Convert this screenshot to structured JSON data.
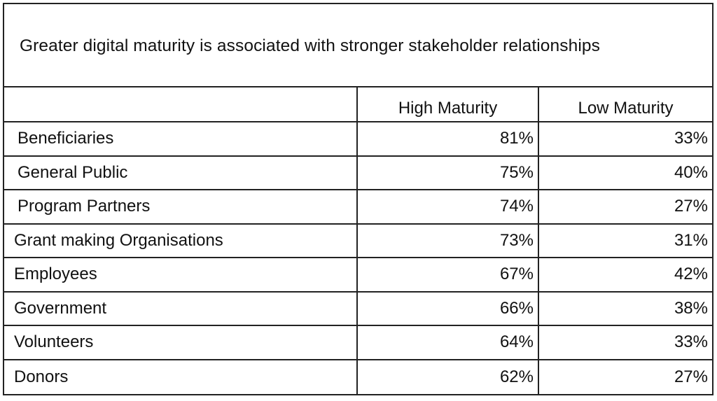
{
  "chart_data": {
    "type": "table",
    "title": "Greater digital maturity is associated with stronger stakeholder relationships",
    "columns": [
      "",
      "High Maturity",
      "Low Maturity"
    ],
    "rows": [
      {
        "label": "Beneficiaries",
        "high": "81%",
        "low": "33%"
      },
      {
        "label": "General Public",
        "high": "75%",
        "low": "40%"
      },
      {
        "label": "Program Partners",
        "high": "74%",
        "low": "27%"
      },
      {
        "label": "Grant making Organisations",
        "high": "73%",
        "low": "31%"
      },
      {
        "label": "Employees",
        "high": "67%",
        "low": "42%"
      },
      {
        "label": "Government",
        "high": "66%",
        "low": "38%"
      },
      {
        "label": "Volunteers",
        "high": "64%",
        "low": "33%"
      },
      {
        "label": "Donors",
        "high": "62%",
        "low": "27%"
      }
    ],
    "series": [
      {
        "name": "High Maturity",
        "values": [
          81,
          75,
          74,
          73,
          67,
          66,
          64,
          62
        ]
      },
      {
        "name": "Low Maturity",
        "values": [
          33,
          40,
          27,
          31,
          42,
          38,
          33,
          27
        ]
      }
    ],
    "categories": [
      "Beneficiaries",
      "General Public",
      "Program Partners",
      "Grant making Organisations",
      "Employees",
      "Government",
      "Volunteers",
      "Donors"
    ]
  }
}
